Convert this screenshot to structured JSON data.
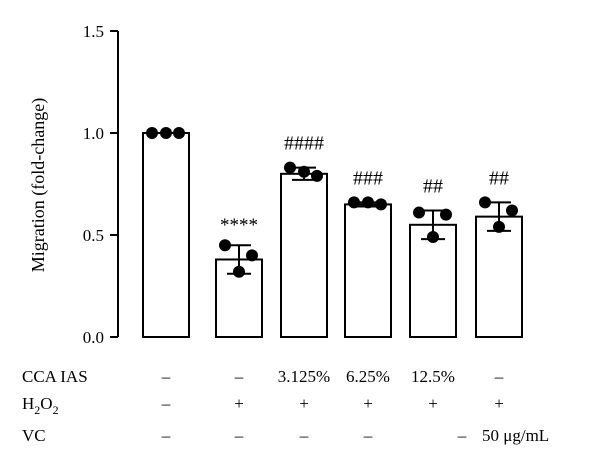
{
  "chart_data": {
    "type": "bar",
    "ylabel": "Migration (fold-change)",
    "ylim": [
      0,
      1.5
    ],
    "yticks": [
      "0.0",
      "0.5",
      "1.0",
      "1.5"
    ],
    "ytick_values": [
      0,
      0.5,
      1.0,
      1.5
    ],
    "bar_fill": "#ffffff",
    "bar_stroke": "#000000",
    "bars": [
      {
        "value": 1.0,
        "error": 0.0,
        "points": [
          1.0,
          1.0,
          1.0
        ],
        "annotation": ""
      },
      {
        "value": 0.38,
        "error": 0.07,
        "points": [
          0.45,
          0.32,
          0.4
        ],
        "annotation": "****"
      },
      {
        "value": 0.8,
        "error": 0.03,
        "points": [
          0.83,
          0.81,
          0.79
        ],
        "annotation": "####"
      },
      {
        "value": 0.65,
        "error": 0.01,
        "points": [
          0.66,
          0.66,
          0.65
        ],
        "annotation": "###"
      },
      {
        "value": 0.55,
        "error": 0.07,
        "points": [
          0.61,
          0.49,
          0.6
        ],
        "annotation": "##"
      },
      {
        "value": 0.59,
        "error": 0.07,
        "points": [
          0.66,
          0.54,
          0.62
        ],
        "annotation": "##"
      }
    ],
    "conditions": [
      {
        "label": "CCA IAS",
        "values": [
          "–",
          "–",
          "3.125%",
          "6.25%",
          "12.5%",
          "–"
        ]
      },
      {
        "label": "H2O2",
        "values": [
          "–",
          "+",
          "+",
          "+",
          "+",
          "+"
        ]
      },
      {
        "label": "VC",
        "values": [
          "–",
          "–",
          "–",
          "–",
          "–",
          "50 μg/mL"
        ]
      }
    ]
  }
}
